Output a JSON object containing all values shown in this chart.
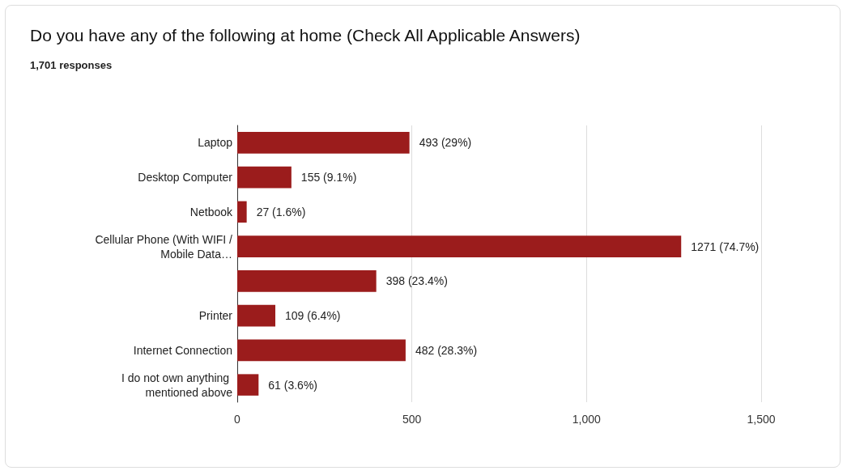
{
  "chart_data": {
    "type": "bar",
    "orientation": "horizontal",
    "title": "Do you have any of the following at home (Check All Applicable Answers)",
    "subtitle": "1,701 responses",
    "categories": [
      "Laptop",
      "Desktop Computer",
      "Netbook",
      "Cellular Phone (With WIFI / Mobile Data…",
      null,
      "Printer",
      "Internet Connection",
      "I do not own anything mentioned above"
    ],
    "values": [
      493,
      155,
      27,
      1271,
      398,
      109,
      482,
      61
    ],
    "value_labels": [
      "493 (29%)",
      "155 (9.1%)",
      "27 (1.6%)",
      "1271 (74.7%)",
      "398 (23.4%)",
      "109 (6.4%)",
      "482 (28.3%)",
      "61 (3.6%)"
    ],
    "color": "#9b1c1c",
    "xlim": [
      0,
      1500
    ],
    "xticks": [
      0,
      500,
      {
        "value": 1000,
        "label": "1,000"
      },
      {
        "value": 1500,
        "label": "1,500"
      }
    ],
    "grid": "x"
  }
}
